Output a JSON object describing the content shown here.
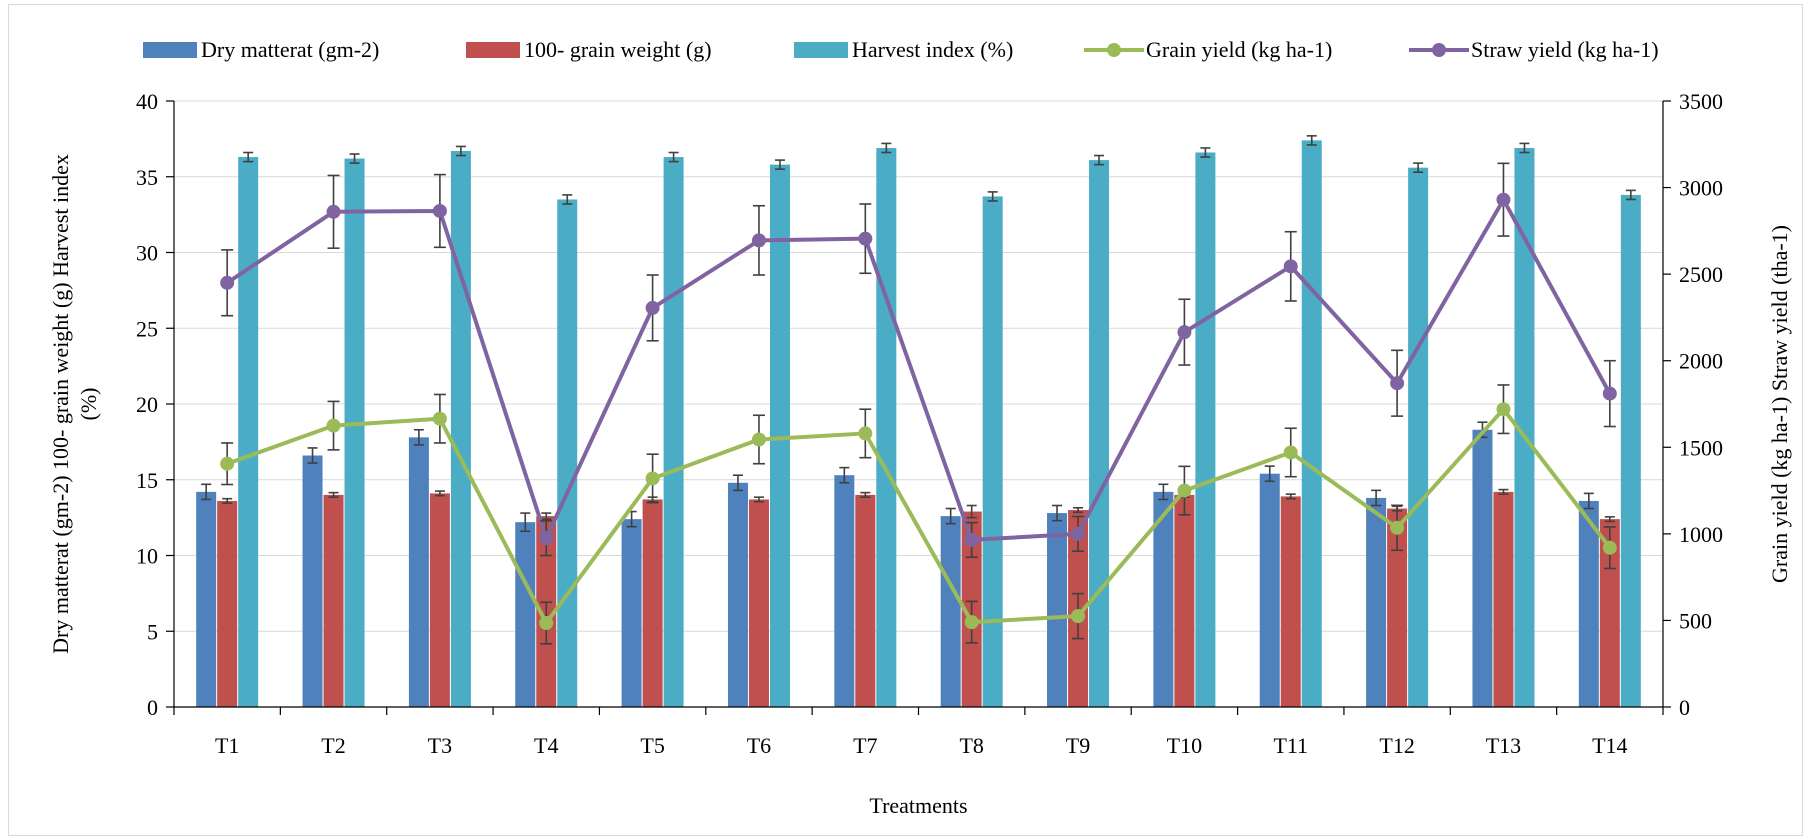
{
  "chart_data": {
    "type": "bar",
    "categories": [
      "T1",
      "T2",
      "T3",
      "T4",
      "T5",
      "T6",
      "T7",
      "T8",
      "T9",
      "T10",
      "T11",
      "T12",
      "T13",
      "T14"
    ],
    "bar_series": [
      {
        "name": "Dry matterat  (gm-2)",
        "color": "#4f81bd",
        "axis": "left",
        "values": [
          14.2,
          16.6,
          17.8,
          12.2,
          12.4,
          14.8,
          15.3,
          12.6,
          12.8,
          14.2,
          15.4,
          13.8,
          18.3,
          13.6
        ],
        "errors": [
          0.5,
          0.5,
          0.5,
          0.6,
          0.5,
          0.5,
          0.5,
          0.5,
          0.5,
          0.5,
          0.5,
          0.5,
          0.5,
          0.5
        ]
      },
      {
        "name": "100- grain weight (g)",
        "color": "#c0504d",
        "axis": "left",
        "values": [
          13.6,
          14.0,
          14.1,
          12.6,
          13.7,
          13.7,
          14.0,
          12.9,
          13.0,
          14.0,
          13.9,
          13.1,
          14.2,
          12.4
        ],
        "errors": [
          0.15,
          0.15,
          0.15,
          0.2,
          0.15,
          0.15,
          0.15,
          0.4,
          0.15,
          0.15,
          0.15,
          0.15,
          0.15,
          0.15
        ]
      },
      {
        "name": "Harvest index (%)",
        "color": "#4bacc6",
        "axis": "left",
        "values": [
          36.3,
          36.2,
          36.7,
          33.5,
          36.3,
          35.8,
          36.9,
          33.7,
          36.1,
          36.6,
          37.4,
          35.6,
          36.9,
          33.8
        ],
        "errors": [
          0.3,
          0.3,
          0.3,
          0.3,
          0.3,
          0.3,
          0.3,
          0.3,
          0.3,
          0.3,
          0.3,
          0.3,
          0.3,
          0.3
        ]
      }
    ],
    "line_series": [
      {
        "name": "Grain yield (kg ha-1)",
        "color": "#9bbb59",
        "axis": "right",
        "values": [
          1405,
          1625,
          1665,
          485,
          1320,
          1545,
          1580,
          490,
          525,
          1250,
          1470,
          1035,
          1720,
          920
        ],
        "errors": [
          120,
          140,
          140,
          120,
          140,
          140,
          140,
          120,
          130,
          140,
          140,
          130,
          140,
          120
        ]
      },
      {
        "name": "Straw yield (kg ha-1)",
        "color": "#8064a2",
        "axis": "right",
        "values": [
          2450,
          2860,
          2865,
          975,
          2305,
          2695,
          2705,
          965,
          1000,
          2165,
          2545,
          1870,
          2930,
          1810
        ],
        "errors": [
          190,
          210,
          210,
          100,
          190,
          200,
          200,
          100,
          100,
          190,
          200,
          190,
          210,
          190
        ]
      }
    ],
    "xlabel": "Treatments",
    "ylabel_left": "Dry matterat  (gm-2) 100- grain weight (g) Harvest index (%)",
    "ylabel_right": "Grain yield (kg ha-1) Straw yield (tha-1)",
    "ylim_left": [
      0,
      40
    ],
    "ylim_right": [
      0,
      3500
    ],
    "yticks_left": [
      "0",
      "5",
      "10",
      "15",
      "20",
      "25",
      "30",
      "35",
      "40"
    ],
    "yticks_right": [
      "0",
      "500",
      "1000",
      "1500",
      "2000",
      "2500",
      "3000",
      "3500"
    ],
    "grid": true,
    "legend_position": "top",
    "legend": [
      "Dry matterat  (gm-2)",
      "100- grain weight (g)",
      "Harvest index (%)",
      "Grain yield (kg ha-1)",
      "Straw yield (kg ha-1)"
    ]
  }
}
